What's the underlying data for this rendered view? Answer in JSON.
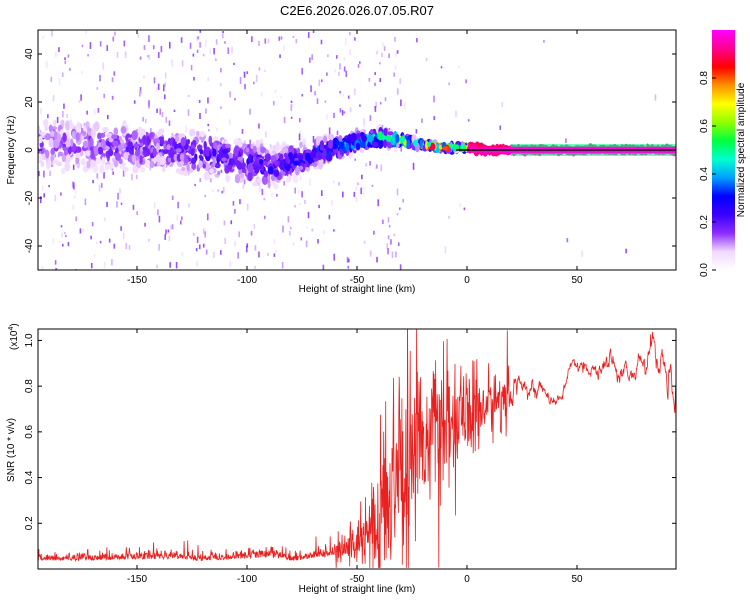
{
  "title": "C2E6.2026.026.07.05.R07",
  "chart_data": [
    {
      "type": "heatmap",
      "title": "C2E6.2026.026.07.05.R07",
      "xlabel": "Height of straight line (km)",
      "ylabel": "Frequency (Hz)",
      "xlim": [
        -195,
        95
      ],
      "ylim": [
        -50,
        50
      ],
      "xticks": [
        -150,
        -100,
        -50,
        0,
        50
      ],
      "yticks": [
        -40,
        -20,
        0,
        20,
        40
      ],
      "colorbar": {
        "label": "Normalized spectral amplitude",
        "range": [
          0,
          1
        ],
        "ticks": [
          0.0,
          0.2,
          0.4,
          0.6,
          0.8
        ],
        "tick_labels": [
          "0.0",
          "0.2",
          "0.4",
          "0.6",
          "0.8"
        ],
        "colors": [
          "#ffffff",
          "#f1d8ff",
          "#8c2cff",
          "#3a00ff",
          "#0000ff",
          "#00a0ff",
          "#00ffd0",
          "#00ff40",
          "#90ff00",
          "#ffff00",
          "#ff9000",
          "#ff0000",
          "#ff0090",
          "#ff00ff"
        ]
      },
      "ridge_frequency_hz": {
        "x": [
          -195,
          -170,
          -150,
          -130,
          -110,
          -100,
          -90,
          -80,
          -70,
          -60,
          -50,
          -40,
          -30,
          -20,
          -10,
          0,
          10,
          20,
          50,
          95
        ],
        "y": [
          3,
          2,
          1,
          0,
          -3,
          -5,
          -7,
          -5,
          -2,
          1,
          4,
          5,
          4,
          2,
          1,
          1,
          0,
          0,
          0,
          0
        ]
      },
      "scatter_amplitude": {
        "x": [
          -195,
          -150,
          -100,
          -75,
          -50,
          -30,
          -20,
          -10,
          0,
          20,
          95
        ],
        "spread_hz": [
          12,
          10,
          9,
          6,
          4,
          2,
          1,
          1,
          1,
          0.5,
          0.5
        ],
        "amplitude": [
          0.15,
          0.2,
          0.25,
          0.3,
          0.45,
          0.7,
          0.9,
          0.9,
          0.95,
          0.98,
          0.98
        ]
      }
    },
    {
      "type": "line",
      "xlabel": "Height of straight line (km)",
      "ylabel": "SNR (10 * v/v)",
      "scale_label": "(x10",
      "scale_exponent": "4",
      "xlim": [
        -195,
        95
      ],
      "ylim": [
        0,
        1.05
      ],
      "xticks": [
        -150,
        -100,
        -50,
        0,
        50
      ],
      "yticks": [
        0.2,
        0.4,
        0.6,
        0.8,
        1.0
      ],
      "ytick_labels": [
        "0.2",
        "0.4",
        "0.6",
        "0.8",
        "1.0"
      ],
      "color": "#e8201f",
      "series": [
        {
          "name": "SNR",
          "x": [
            -195,
            -180,
            -160,
            -140,
            -120,
            -100,
            -90,
            -80,
            -70,
            -60,
            -55,
            -50,
            -45,
            -40,
            -38,
            -35,
            -33,
            -30,
            -28,
            -25,
            -22,
            -20,
            -15,
            -10,
            -5,
            0,
            5,
            10,
            15,
            20,
            25,
            30,
            35,
            40,
            45,
            50,
            55,
            60,
            65,
            70,
            75,
            80,
            85,
            90,
            95
          ],
          "y": [
            0.04,
            0.04,
            0.045,
            0.05,
            0.04,
            0.05,
            0.06,
            0.04,
            0.05,
            0.07,
            0.09,
            0.12,
            0.18,
            0.25,
            0.38,
            0.3,
            0.45,
            0.5,
            0.42,
            0.55,
            0.62,
            0.58,
            0.6,
            0.63,
            0.66,
            0.65,
            0.7,
            0.72,
            0.74,
            0.76,
            0.85,
            0.82,
            0.76,
            0.72,
            0.8,
            0.9,
            0.87,
            0.83,
            0.9,
            0.88,
            0.85,
            0.9,
            0.95,
            0.88,
            0.72
          ],
          "noise": [
            0.015,
            0.015,
            0.015,
            0.02,
            0.015,
            0.02,
            0.02,
            0.02,
            0.02,
            0.03,
            0.04,
            0.05,
            0.08,
            0.15,
            0.2,
            0.2,
            0.22,
            0.2,
            0.2,
            0.18,
            0.16,
            0.15,
            0.14,
            0.12,
            0.1,
            0.1,
            0.1,
            0.08,
            0.06,
            0.05,
            0.03,
            0.03,
            0.02,
            0.02,
            0.02,
            0.02,
            0.02,
            0.03,
            0.03,
            0.03,
            0.03,
            0.03,
            0.05,
            0.05,
            0.08
          ]
        }
      ]
    }
  ]
}
